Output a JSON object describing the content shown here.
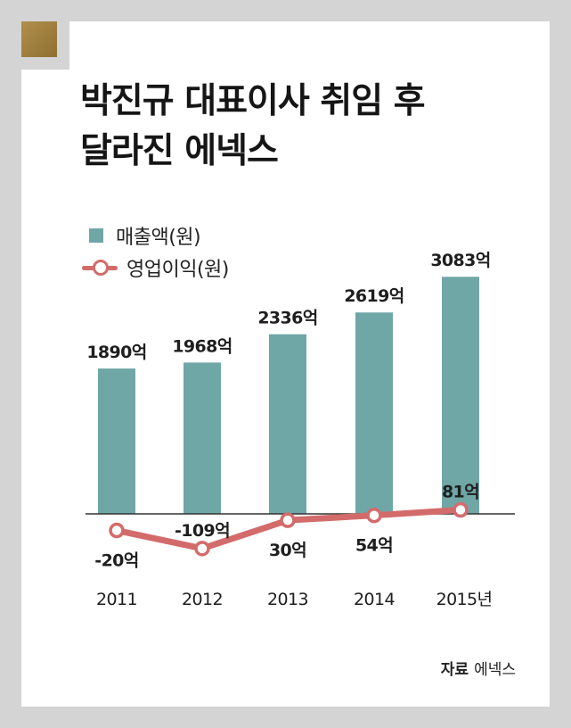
{
  "title": {
    "line1": "박진규 대표이사 취임 후",
    "line2": "달라진 에넥스"
  },
  "legend": {
    "revenue": "매출액(원)",
    "operating_profit": "영업이익(원)"
  },
  "source": {
    "label": "자료",
    "value": "에넥스"
  },
  "colors": {
    "bar": "#6fa6a6",
    "line": "#d36b6b",
    "accent_square": "#9c7c3a"
  },
  "chart_data": {
    "type": "bar",
    "categories": [
      "2011",
      "2012",
      "2013",
      "2014",
      "2015년"
    ],
    "series": [
      {
        "name": "매출액(원)",
        "type": "bar",
        "values": [
          1890,
          1968,
          2336,
          2619,
          3083
        ],
        "labels": [
          "1890억",
          "1968억",
          "2336억",
          "2619억",
          "3083억"
        ]
      },
      {
        "name": "영업이익(원)",
        "type": "line",
        "values": [
          -20,
          -109,
          30,
          54,
          81
        ],
        "labels": [
          "-20억",
          "-109억",
          "30억",
          "54억",
          "81억"
        ]
      }
    ],
    "title": "박진규 대표이사 취임 후 달라진 에넥스",
    "xlabel": "",
    "ylabel": "",
    "legend": "top-left",
    "grid": false
  }
}
